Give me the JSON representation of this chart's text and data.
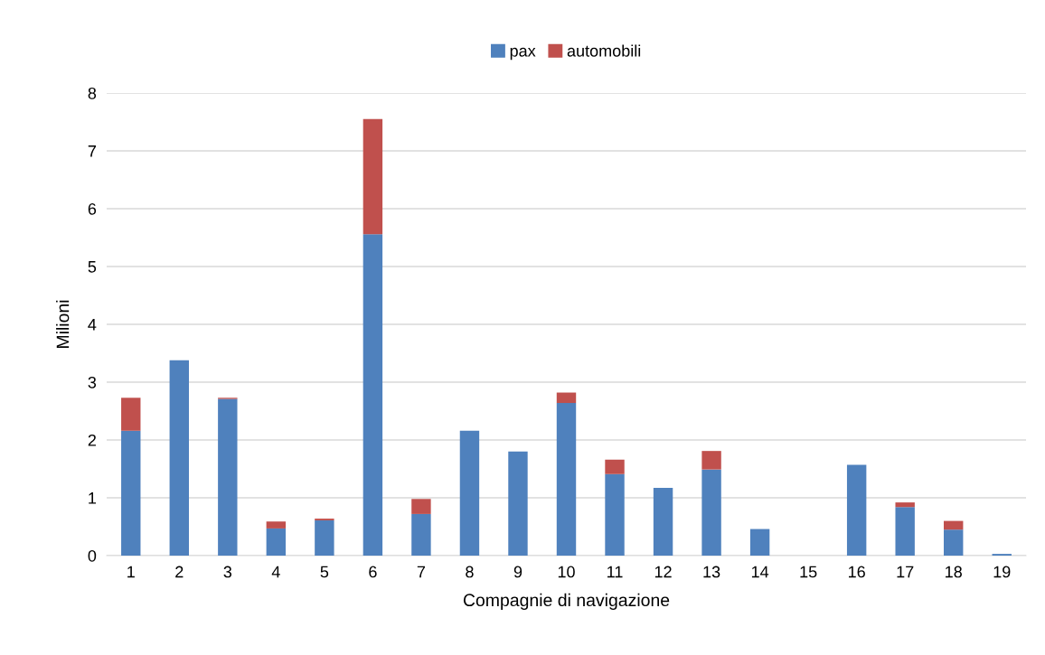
{
  "chart_data": {
    "type": "bar",
    "stacked": true,
    "xlabel": "Compagnie di navigazione",
    "ylabel": "Milioni",
    "categories": [
      "1",
      "2",
      "3",
      "4",
      "5",
      "6",
      "7",
      "8",
      "9",
      "10",
      "11",
      "12",
      "13",
      "14",
      "15",
      "16",
      "17",
      "18",
      "19"
    ],
    "series": [
      {
        "name": "pax",
        "color": "#4f81bd",
        "values": [
          2.16,
          3.38,
          2.71,
          0.47,
          0.61,
          5.56,
          0.72,
          2.16,
          1.8,
          2.64,
          1.41,
          1.17,
          1.49,
          0.46,
          0,
          1.57,
          0.84,
          0.45,
          0.03
        ]
      },
      {
        "name": "automobili",
        "color": "#c0504d",
        "values": [
          0.57,
          0,
          0.02,
          0.12,
          0.03,
          1.99,
          0.26,
          0,
          0,
          0.18,
          0.25,
          0,
          0.32,
          0,
          0,
          0,
          0.08,
          0.15,
          0
        ]
      }
    ],
    "ylim": [
      0,
      8
    ],
    "yticks": [
      0,
      1,
      2,
      3,
      4,
      5,
      6,
      7,
      8
    ],
    "grid": "y",
    "legend": "top"
  }
}
